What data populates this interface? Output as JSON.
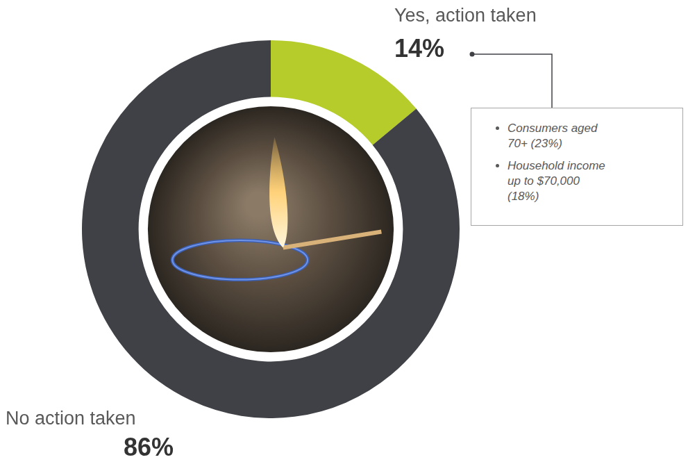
{
  "chart_data": {
    "type": "doughnut",
    "categories": [
      "Yes, action taken",
      "No action taken"
    ],
    "values": [
      14,
      86
    ],
    "value_labels": [
      "14%",
      "86%"
    ],
    "data_labels": true,
    "colors": [
      "#b5cc2a",
      "#404146"
    ],
    "annotations": [
      {
        "category": "Yes, action taken",
        "items": [
          "Consumers aged 70+ (23%)",
          "Household income up to $70,000 (18%)"
        ]
      }
    ]
  }
}
